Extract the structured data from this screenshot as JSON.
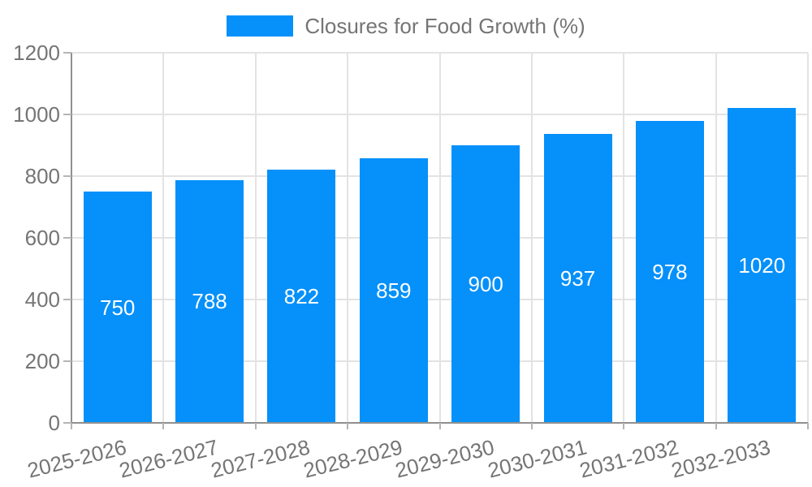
{
  "chart_data": {
    "type": "bar",
    "title": "Closures for Food Growth (%)",
    "categories": [
      "2025-2026",
      "2026-2027",
      "2027-2028",
      "2028-2029",
      "2029-2030",
      "2030-2031",
      "2031-2032",
      "2032-2033"
    ],
    "values": [
      750,
      788,
      822,
      859,
      900,
      937,
      978,
      1020
    ],
    "series": [
      {
        "name": "Closures for Food Growth (%)",
        "values": [
          750,
          788,
          822,
          859,
          900,
          937,
          978,
          1020
        ]
      }
    ],
    "value_labels": [
      "750",
      "788",
      "822",
      "859",
      "900",
      "937",
      "978",
      "1020"
    ],
    "xlabel": "",
    "ylabel": "",
    "ylim": [
      0,
      1200
    ],
    "yticks": [
      0,
      200,
      400,
      600,
      800,
      1000,
      1200
    ],
    "ytick_labels": [
      "0",
      "200",
      "400",
      "600",
      "800",
      "1000",
      "1200"
    ],
    "grid": true,
    "legend_position": "top",
    "colors": {
      "bar": "#0590fa",
      "axis_text": "#757575",
      "bar_label_text": "#ffffff",
      "gridline": "#e3e3e3",
      "axis_line": "#909090",
      "tick": "#b5b5b5",
      "background": "#ffffff"
    }
  }
}
